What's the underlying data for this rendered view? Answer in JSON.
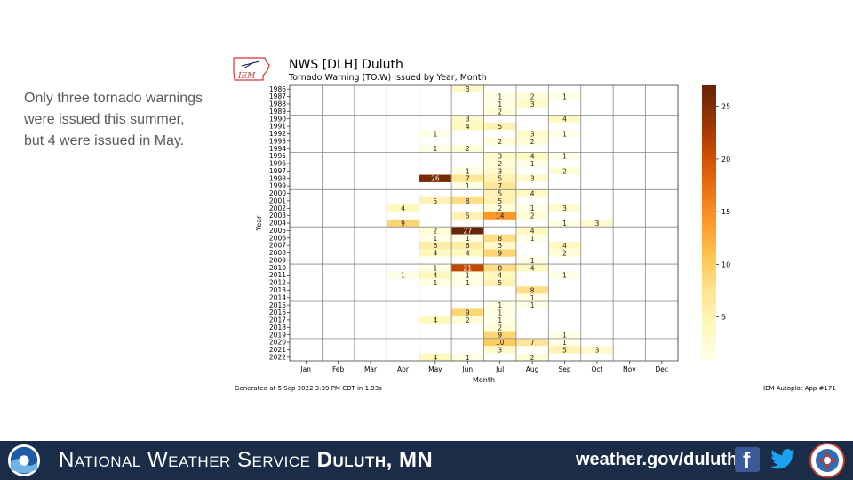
{
  "slide": {
    "body_text": "Only three tornado warnings were issued this summer, but 4 were issued in May."
  },
  "chart_header": {
    "title": "NWS [DLH] Duluth",
    "subtitle": "Tornado Warning (TO.W) Issued by Year, Month",
    "logo_text": "IEM"
  },
  "chart_footer": {
    "generated": "Generated at 5 Sep 2022 3:39 PM CDT in 1.93s",
    "app": "IEM Autoplot App #171"
  },
  "footer": {
    "org_prefix": "National Weather Service",
    "org_office": "Duluth, MN",
    "url": "weather.gov/duluth",
    "facebook_glyph": "f",
    "icons": [
      "noaa-logo",
      "facebook-icon",
      "twitter-icon",
      "nws-logo"
    ]
  },
  "colors": {
    "footer_bg": "#1a2c47",
    "text_gray": "#595959",
    "colormap": "YlOrBr"
  },
  "chart_data": {
    "type": "heatmap",
    "title": "NWS [DLH] Duluth",
    "subtitle": "Tornado Warning (TO.W) Issued by Year, Month",
    "xlabel": "Month",
    "ylabel": "Year",
    "x": [
      "Jan",
      "Feb",
      "Mar",
      "Apr",
      "May",
      "Jun",
      "Jul",
      "Aug",
      "Sep",
      "Oct",
      "Nov",
      "Dec"
    ],
    "y": [
      "1986",
      "1987",
      "1988",
      "1989",
      "1990",
      "1991",
      "1992",
      "1993",
      "1994",
      "1995",
      "1996",
      "1997",
      "1998",
      "1999",
      "2000",
      "2001",
      "2002",
      "2003",
      "2004",
      "2005",
      "2006",
      "2007",
      "2008",
      "2009",
      "2010",
      "2011",
      "2012",
      "2013",
      "2014",
      "2015",
      "2016",
      "2017",
      "2018",
      "2019",
      "2020",
      "2021",
      "2022"
    ],
    "values": [
      [
        0,
        0,
        0,
        0,
        0,
        3,
        0,
        0,
        0,
        0,
        0,
        0
      ],
      [
        0,
        0,
        0,
        0,
        0,
        0,
        1,
        2,
        1,
        0,
        0,
        0
      ],
      [
        0,
        0,
        0,
        0,
        0,
        0,
        1,
        3,
        0,
        0,
        0,
        0
      ],
      [
        0,
        0,
        0,
        0,
        0,
        0,
        2,
        0,
        0,
        0,
        0,
        0
      ],
      [
        0,
        0,
        0,
        0,
        0,
        3,
        0,
        0,
        4,
        0,
        0,
        0
      ],
      [
        0,
        0,
        0,
        0,
        0,
        4,
        5,
        0,
        0,
        0,
        0,
        0
      ],
      [
        0,
        0,
        0,
        0,
        1,
        0,
        0,
        3,
        1,
        0,
        0,
        0
      ],
      [
        0,
        0,
        0,
        0,
        0,
        0,
        2,
        2,
        0,
        0,
        0,
        0
      ],
      [
        0,
        0,
        0,
        0,
        1,
        2,
        0,
        0,
        0,
        0,
        0,
        0
      ],
      [
        0,
        0,
        0,
        0,
        0,
        0,
        3,
        4,
        1,
        0,
        0,
        0
      ],
      [
        0,
        0,
        0,
        0,
        0,
        0,
        2,
        1,
        0,
        0,
        0,
        0
      ],
      [
        0,
        0,
        0,
        0,
        0,
        1,
        3,
        0,
        2,
        0,
        0,
        0
      ],
      [
        0,
        0,
        0,
        0,
        26,
        7,
        5,
        3,
        0,
        0,
        0,
        0
      ],
      [
        0,
        0,
        0,
        0,
        0,
        1,
        7,
        0,
        0,
        0,
        0,
        0
      ],
      [
        0,
        0,
        0,
        0,
        0,
        0,
        5,
        4,
        0,
        0,
        0,
        0
      ],
      [
        0,
        0,
        0,
        0,
        5,
        8,
        5,
        0,
        0,
        0,
        0,
        0
      ],
      [
        0,
        0,
        0,
        4,
        0,
        0,
        2,
        1,
        3,
        0,
        0,
        0
      ],
      [
        0,
        0,
        0,
        0,
        0,
        5,
        14,
        2,
        0,
        0,
        0,
        0
      ],
      [
        0,
        0,
        0,
        9,
        0,
        0,
        0,
        0,
        1,
        3,
        0,
        0
      ],
      [
        0,
        0,
        0,
        0,
        2,
        27,
        0,
        4,
        0,
        0,
        0,
        0
      ],
      [
        0,
        0,
        0,
        0,
        1,
        1,
        8,
        1,
        0,
        0,
        0,
        0
      ],
      [
        0,
        0,
        0,
        0,
        6,
        6,
        3,
        0,
        4,
        0,
        0,
        0
      ],
      [
        0,
        0,
        0,
        0,
        4,
        4,
        9,
        0,
        2,
        0,
        0,
        0
      ],
      [
        0,
        0,
        0,
        0,
        0,
        0,
        0,
        1,
        0,
        0,
        0,
        0
      ],
      [
        0,
        0,
        0,
        0,
        1,
        21,
        8,
        4,
        0,
        0,
        0,
        0
      ],
      [
        0,
        0,
        0,
        1,
        4,
        1,
        4,
        0,
        1,
        0,
        0,
        0
      ],
      [
        0,
        0,
        0,
        0,
        1,
        1,
        5,
        0,
        0,
        0,
        0,
        0
      ],
      [
        0,
        0,
        0,
        0,
        0,
        0,
        0,
        8,
        0,
        0,
        0,
        0
      ],
      [
        0,
        0,
        0,
        0,
        0,
        0,
        0,
        1,
        0,
        0,
        0,
        0
      ],
      [
        0,
        0,
        0,
        0,
        0,
        0,
        1,
        1,
        0,
        0,
        0,
        0
      ],
      [
        0,
        0,
        0,
        0,
        0,
        9,
        1,
        0,
        0,
        0,
        0,
        0
      ],
      [
        0,
        0,
        0,
        0,
        4,
        2,
        1,
        0,
        0,
        0,
        0,
        0
      ],
      [
        0,
        0,
        0,
        0,
        0,
        0,
        2,
        0,
        0,
        0,
        0,
        0
      ],
      [
        0,
        0,
        0,
        0,
        0,
        0,
        9,
        0,
        1,
        0,
        0,
        0
      ],
      [
        0,
        0,
        0,
        0,
        0,
        0,
        10,
        7,
        1,
        0,
        0,
        0
      ],
      [
        0,
        0,
        0,
        0,
        0,
        0,
        3,
        0,
        5,
        3,
        0,
        0
      ],
      [
        0,
        0,
        0,
        0,
        4,
        1,
        0,
        2,
        0,
        0,
        0,
        0
      ]
    ],
    "colorbar": {
      "min": 1,
      "max": 27,
      "ticks": [
        5,
        10,
        15,
        20,
        25
      ]
    },
    "grid": true
  }
}
